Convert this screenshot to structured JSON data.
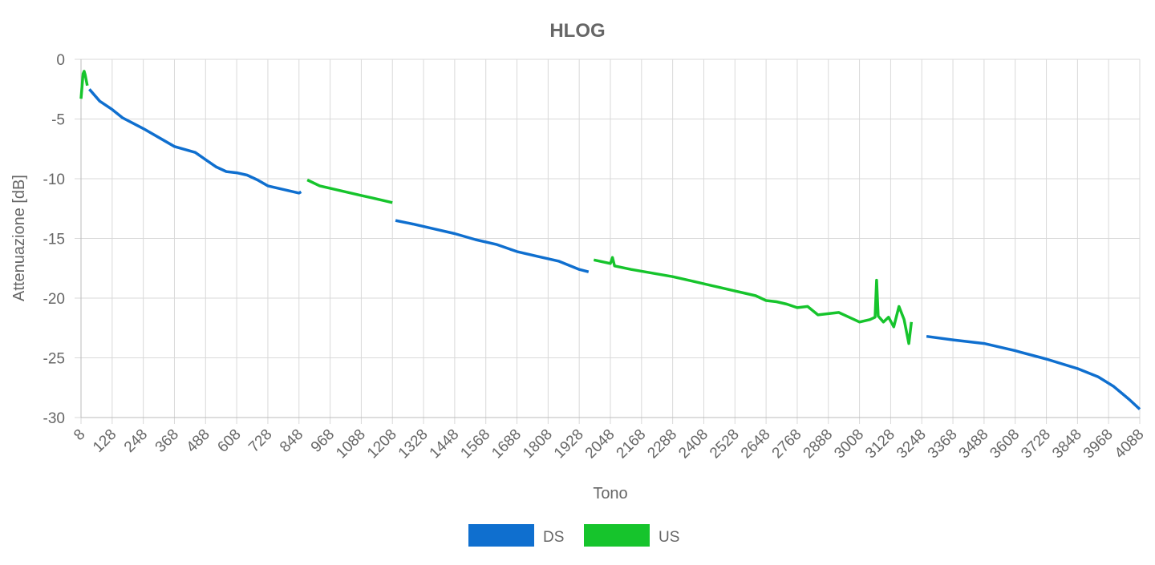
{
  "chart_data": {
    "type": "line",
    "title": "HLOG",
    "x_label": "Tono",
    "y_label": "Attenuazione [dB]",
    "x": [
      8,
      16,
      20,
      24,
      32,
      40,
      80,
      128,
      168,
      248,
      328,
      368,
      448,
      488,
      528,
      568,
      608,
      648,
      688,
      728,
      808,
      848,
      856,
      880,
      928,
      968,
      1008,
      1048,
      1088,
      1128,
      1168,
      1208,
      1220,
      1288,
      1368,
      1448,
      1528,
      1608,
      1688,
      1768,
      1848,
      1928,
      1964,
      1984,
      2048,
      2056,
      2064,
      2128,
      2208,
      2288,
      2368,
      2448,
      2488,
      2528,
      2568,
      2608,
      2648,
      2688,
      2728,
      2768,
      2808,
      2848,
      2888,
      2928,
      2968,
      3008,
      3048,
      3068,
      3074,
      3080,
      3100,
      3120,
      3140,
      3160,
      3180,
      3198,
      3208,
      3266,
      3368,
      3488,
      3608,
      3728,
      3848,
      3928,
      3988,
      4048,
      4088
    ],
    "series": [
      {
        "name": "DS",
        "color": "#0f6fcf",
        "values": [
          null,
          null,
          null,
          null,
          null,
          -2.5,
          -3.5,
          -4.2,
          -4.9,
          -5.8,
          -6.8,
          -7.3,
          -7.8,
          -8.4,
          -9.0,
          -9.4,
          -9.5,
          -9.7,
          -10.1,
          -10.6,
          -11.0,
          -11.2,
          -11.1,
          null,
          null,
          null,
          null,
          null,
          null,
          null,
          null,
          null,
          -13.5,
          -13.8,
          -14.2,
          -14.6,
          -15.1,
          -15.5,
          -16.1,
          -16.5,
          -16.9,
          -17.6,
          -17.8,
          null,
          null,
          null,
          null,
          null,
          null,
          null,
          null,
          null,
          null,
          null,
          null,
          null,
          null,
          null,
          null,
          null,
          null,
          null,
          null,
          null,
          null,
          null,
          null,
          null,
          null,
          null,
          null,
          null,
          null,
          null,
          null,
          null,
          null,
          -23.2,
          -23.5,
          -23.8,
          -24.4,
          -25.1,
          -25.9,
          -26.6,
          -27.4,
          -28.5,
          -29.3
        ]
      },
      {
        "name": "US",
        "color": "#16c42c",
        "values": [
          -3.3,
          -1.2,
          -1.0,
          -1.3,
          -2.2,
          null,
          null,
          null,
          null,
          null,
          null,
          null,
          null,
          null,
          null,
          null,
          null,
          null,
          null,
          null,
          null,
          null,
          null,
          -10.1,
          -10.6,
          -10.8,
          -11.0,
          -11.2,
          -11.4,
          -11.6,
          -11.8,
          -12.0,
          null,
          null,
          null,
          null,
          null,
          null,
          null,
          null,
          null,
          null,
          null,
          -16.8,
          -17.1,
          -16.6,
          -17.3,
          -17.6,
          -17.9,
          -18.2,
          -18.6,
          -19.0,
          -19.2,
          -19.4,
          -19.6,
          -19.8,
          -20.2,
          -20.3,
          -20.5,
          -20.8,
          -20.7,
          -21.4,
          -21.3,
          -21.2,
          -21.6,
          -22.0,
          -21.8,
          -21.6,
          -18.5,
          -21.5,
          -22.0,
          -21.6,
          -22.4,
          -20.7,
          -21.8,
          -23.8,
          -22.0,
          null,
          null,
          null,
          null,
          null,
          null,
          null,
          null,
          null,
          null
        ]
      }
    ],
    "xlim": [
      8,
      4088
    ],
    "xticks": [
      8,
      128,
      248,
      368,
      488,
      608,
      728,
      848,
      968,
      1088,
      1208,
      1328,
      1448,
      1568,
      1688,
      1808,
      1928,
      2048,
      2168,
      2288,
      2408,
      2528,
      2648,
      2768,
      2888,
      3008,
      3128,
      3248,
      3368,
      3488,
      3608,
      3728,
      3848,
      3968,
      4088
    ],
    "ylim": [
      -30,
      0
    ],
    "yticks": [
      0,
      -5,
      -10,
      -15,
      -20,
      -25,
      -30
    ],
    "grid": true,
    "legend": "bottom"
  }
}
